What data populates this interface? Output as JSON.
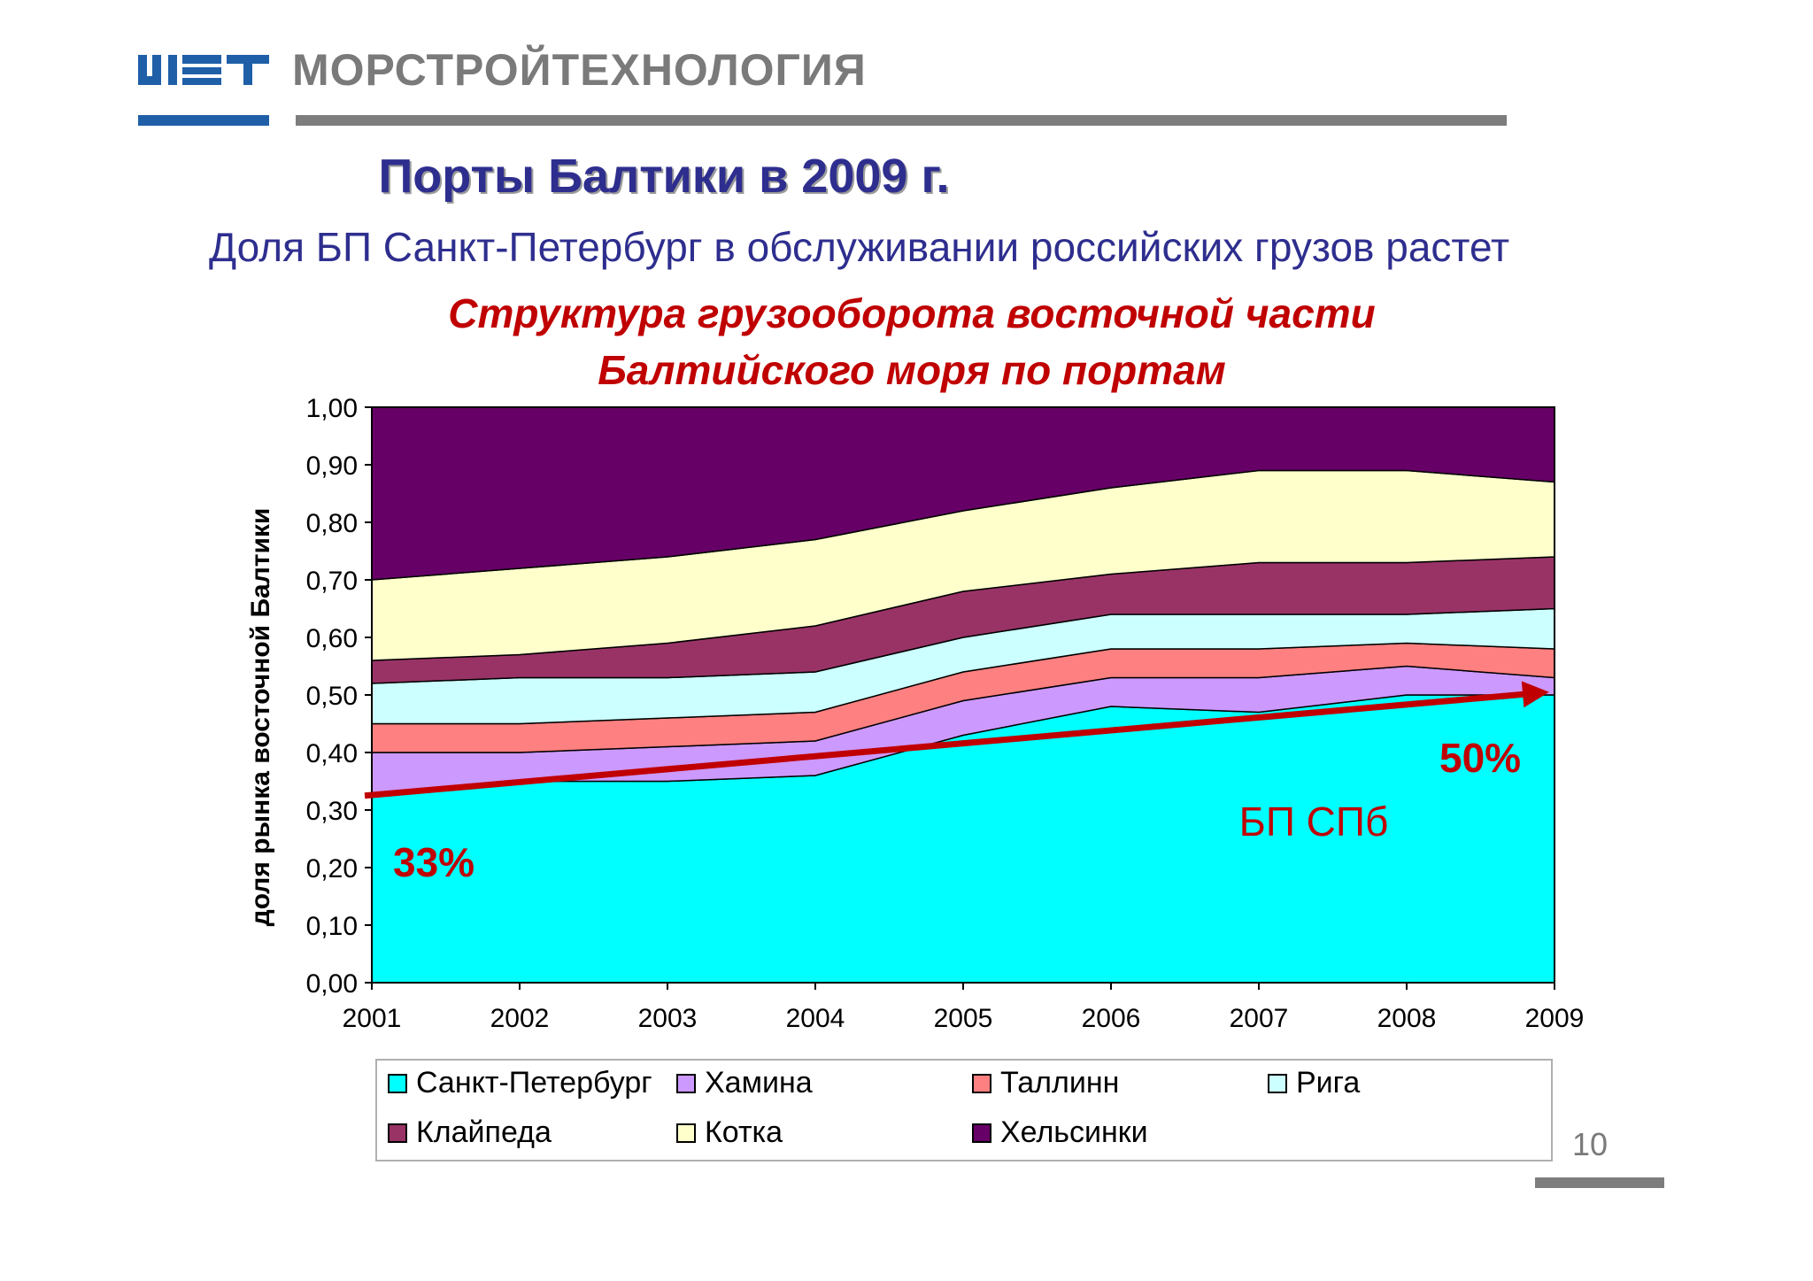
{
  "header": {
    "brand_name": "МОРСТРОЙТЕХНОЛОГИЯ",
    "brand_color": "#7a7a7a",
    "logo_color": "#1f5fa8"
  },
  "slide": {
    "title": "Порты Балтики в 2009 г.",
    "subtitle": "Доля БП Санкт-Петербург в обслуживании российских грузов растет",
    "chart_heading_line1": "Структура грузооборота восточной части",
    "chart_heading_line2": "Балтийского моря по портам",
    "page_number": "10"
  },
  "chart_data": {
    "type": "area",
    "stacked": true,
    "title": "Структура грузооборота восточной части Балтийского моря по портам",
    "ylabel": "доля рынка восточной Балтики",
    "xlabel": "",
    "ylim": [
      0,
      1
    ],
    "yticks": [
      "0,00",
      "0,10",
      "0,20",
      "0,30",
      "0,40",
      "0,50",
      "0,60",
      "0,70",
      "0,80",
      "0,90",
      "1,00"
    ],
    "categories": [
      "2001",
      "2002",
      "2003",
      "2004",
      "2005",
      "2006",
      "2007",
      "2008",
      "2009"
    ],
    "series": [
      {
        "name": "Санкт-Петербург",
        "color": "#00ffff",
        "values": [
          0.33,
          0.35,
          0.35,
          0.36,
          0.43,
          0.48,
          0.47,
          0.5,
          0.5
        ]
      },
      {
        "name": "Хамина",
        "color": "#cc99ff",
        "values": [
          0.07,
          0.05,
          0.06,
          0.06,
          0.06,
          0.05,
          0.06,
          0.05,
          0.03
        ]
      },
      {
        "name": "Таллинн",
        "color": "#ff8080",
        "values": [
          0.05,
          0.05,
          0.05,
          0.05,
          0.05,
          0.05,
          0.05,
          0.04,
          0.05
        ]
      },
      {
        "name": "Рига",
        "color": "#ccffff",
        "values": [
          0.07,
          0.08,
          0.07,
          0.07,
          0.06,
          0.06,
          0.06,
          0.05,
          0.07
        ]
      },
      {
        "name": "Клайпеда",
        "color": "#993366",
        "values": [
          0.04,
          0.04,
          0.06,
          0.08,
          0.08,
          0.07,
          0.09,
          0.09,
          0.09
        ]
      },
      {
        "name": "Котка",
        "color": "#ffffcc",
        "values": [
          0.14,
          0.15,
          0.15,
          0.15,
          0.14,
          0.15,
          0.16,
          0.16,
          0.13
        ]
      },
      {
        "name": "Хельсинки",
        "color": "#660066",
        "values": [
          0.3,
          0.28,
          0.26,
          0.23,
          0.18,
          0.14,
          0.11,
          0.11,
          0.13
        ]
      }
    ],
    "annotations": {
      "start_label": "33%",
      "end_label": "50%",
      "area_label": "БП СПб",
      "trend_color": "#c00000",
      "trend_start": {
        "x": "2001",
        "y": 0.325
      },
      "trend_end": {
        "x": "2009",
        "y": 0.505
      }
    },
    "legend_position": "bottom"
  }
}
